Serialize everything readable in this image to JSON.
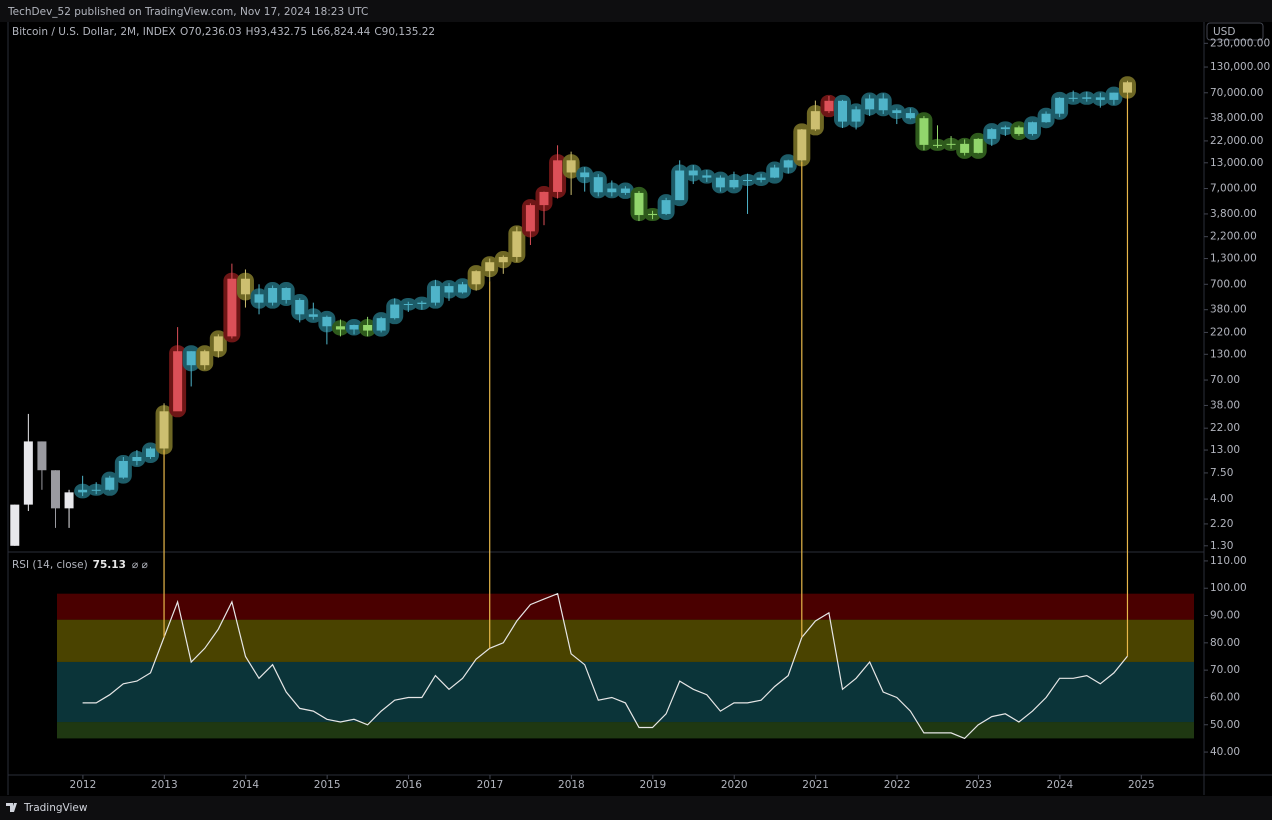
{
  "header": {
    "publisher": "TechDev_52 published on TradingView.com, Nov 17, 2024 18:23 UTC",
    "symbol": "Bitcoin / U.S. Dollar, 2M, INDEX",
    "ohlc_labels": [
      "O70,236.03",
      "H93,432.75",
      "L66,824.44",
      "C90,135.22"
    ],
    "currency": "USD",
    "footer": "TradingView"
  },
  "chart_data": {
    "type": "candlestick",
    "log": true,
    "xlim": [
      2011.08,
      2025.77
    ],
    "xticks": [
      2012,
      2013,
      2014,
      2015,
      2016,
      2017,
      2018,
      2019,
      2020,
      2021,
      2022,
      2023,
      2024,
      2025
    ],
    "ylim": [
      1.12,
      384000
    ],
    "yticks": [
      {
        "value": 230000,
        "label": "230,000.00"
      },
      {
        "value": 130000,
        "label": "130,000.00"
      },
      {
        "value": 70000,
        "label": "70,000.00"
      },
      {
        "value": 38000,
        "label": "38,000.00"
      },
      {
        "value": 22000,
        "label": "22,000.00"
      },
      {
        "value": 13000,
        "label": "13,000.00"
      },
      {
        "value": 7000,
        "label": "7,000.00"
      },
      {
        "value": 3800,
        "label": "3,800.00"
      },
      {
        "value": 2200,
        "label": "2,200.00"
      },
      {
        "value": 1300,
        "label": "1,300.00"
      },
      {
        "value": 700,
        "label": "700.00"
      },
      {
        "value": 380,
        "label": "380.00"
      },
      {
        "value": 220,
        "label": "220.00"
      },
      {
        "value": 130,
        "label": "130.00"
      },
      {
        "value": 70,
        "label": "70.00"
      },
      {
        "value": 38,
        "label": "38.00"
      },
      {
        "value": 22,
        "label": "22.00"
      },
      {
        "value": 13,
        "label": "13.00"
      },
      {
        "value": 7.5,
        "label": "7.50"
      },
      {
        "value": 4,
        "label": "4.00"
      },
      {
        "value": 2.2,
        "label": "2.20"
      },
      {
        "value": 1.3,
        "label": "1.30"
      }
    ],
    "candles": {
      "open": [
        1.3,
        3.5,
        16,
        8,
        3.2,
        4.7,
        5,
        5,
        6.7,
        10,
        11,
        13.5,
        33,
        140,
        100,
        140,
        200,
        800,
        550,
        450,
        640,
        480,
        340,
        320,
        255,
        236,
        263,
        230,
        310,
        430,
        436,
        450,
        670,
        575,
        700,
        960,
        1190,
        1350,
        2500,
        4700,
        6450,
        13800,
        10300,
        9200,
        6400,
        7000,
        6300,
        3700,
        3800,
        5300,
        10800,
        9600,
        9100,
        7200,
        8600,
        8600,
        9100,
        11600,
        13800,
        29000,
        45000,
        57700,
        35000,
        47000,
        61000,
        46000,
        43000,
        38000,
        20000,
        20000,
        20500,
        16500,
        23100,
        29200,
        30500,
        26000,
        34500,
        42300,
        62000,
        60600,
        62700,
        59000,
        70236.03
      ],
      "high": [
        3.5,
        31,
        16,
        8,
        5,
        7,
        6,
        7,
        11,
        13,
        14,
        40,
        250,
        140,
        145,
        210,
        1150,
        1000,
        700,
        680,
        650,
        500,
        450,
        330,
        300,
        265,
        320,
        320,
        500,
        460,
        470,
        780,
        720,
        740,
        980,
        1300,
        1400,
        2800,
        4900,
        6500,
        19800,
        17000,
        11700,
        9900,
        8500,
        7400,
        6600,
        4100,
        5600,
        13800,
        12300,
        10950,
        9600,
        10500,
        10000,
        10000,
        12400,
        14000,
        29300,
        58000,
        64800,
        59000,
        50500,
        67000,
        69000,
        48000,
        48200,
        40000,
        32000,
        24700,
        22800,
        23500,
        30000,
        31800,
        31800,
        35000,
        44700,
        63000,
        73800,
        72000,
        70000,
        70300,
        93432.75
      ],
      "low": [
        1.3,
        3,
        5,
        2,
        2,
        4.3,
        4.5,
        4.9,
        6.5,
        9,
        10.5,
        13,
        50,
        60,
        90,
        120,
        190,
        400,
        340,
        420,
        440,
        280,
        300,
        165,
        200,
        210,
        200,
        220,
        300,
        360,
        380,
        420,
        470,
        560,
        600,
        750,
        900,
        1200,
        1800,
        2900,
        5500,
        6000,
        6500,
        5800,
        5800,
        6000,
        3200,
        3350,
        3700,
        5300,
        7800,
        8200,
        6500,
        6900,
        3800,
        8100,
        9000,
        10000,
        13300,
        28000,
        43000,
        30000,
        29000,
        40000,
        42000,
        33000,
        37000,
        17600,
        18600,
        18200,
        15500,
        16300,
        19500,
        24800,
        24900,
        25000,
        34000,
        39000,
        56600,
        56500,
        49000,
        52500,
        66824.44
      ],
      "close": [
        3.5,
        16,
        8,
        3.2,
        4.7,
        5,
        5,
        6.7,
        10,
        11,
        13.5,
        33,
        140,
        100,
        140,
        200,
        800,
        550,
        450,
        640,
        480,
        340,
        320,
        255,
        236,
        263,
        230,
        310,
        430,
        436,
        450,
        670,
        575,
        700,
        960,
        1190,
        1350,
        2500,
        4700,
        6450,
        13800,
        10300,
        9200,
        6400,
        7000,
        6300,
        3700,
        3800,
        5300,
        10800,
        9600,
        9100,
        7200,
        8600,
        8600,
        9100,
        11600,
        13800,
        29000,
        45000,
        57700,
        35000,
        47000,
        61000,
        46000,
        43000,
        38000,
        20000,
        20000,
        20500,
        16500,
        23100,
        29200,
        30500,
        26000,
        34500,
        42300,
        62000,
        60600,
        62700,
        59000,
        70236.03,
        90135.22
      ]
    },
    "highlight_candles": [
      11,
      35,
      58,
      82
    ],
    "highlight_color": "#e8b84a",
    "rsi": {
      "title": "RSI (14, close)",
      "value_label": "75.13",
      "color": "#e6e6e6",
      "ylim": [
        31.6,
        112.9
      ],
      "yticks": [
        {
          "value": 110,
          "label": "110.00"
        },
        {
          "value": 100,
          "label": "100.00"
        },
        {
          "value": 90,
          "label": "90.00"
        },
        {
          "value": 80,
          "label": "80.00"
        },
        {
          "value": 70,
          "label": "70.00"
        },
        {
          "value": 60,
          "label": "60.00"
        },
        {
          "value": 50,
          "label": "50.00"
        },
        {
          "value": 40,
          "label": "40.00"
        }
      ],
      "bands": [
        {
          "range": [
            45,
            51
          ],
          "color": "#1f3812",
          "halo": "#2e5a1c",
          "body": "#92d66c"
        },
        {
          "range": [
            51,
            73
          ],
          "color": "#0b3439",
          "halo": "#1d5c68",
          "body": "#4fb4c9"
        },
        {
          "range": [
            73,
            88.5
          ],
          "color": "#4a4300",
          "halo": "#6e6724",
          "body": "#cdbf70"
        },
        {
          "range": [
            88.5,
            98
          ],
          "color": "#4a0000",
          "halo": "#6e1616",
          "body": "#dc5058"
        }
      ],
      "values": [
        null,
        null,
        null,
        null,
        null,
        58,
        58,
        61,
        65,
        66,
        69,
        82,
        95,
        73,
        78,
        85,
        95,
        75,
        67,
        72,
        62,
        56,
        55,
        52,
        51,
        52,
        50,
        55,
        59,
        60,
        60,
        68,
        63,
        67,
        74,
        78,
        80,
        88,
        94,
        96,
        98,
        76,
        72,
        59,
        60,
        58,
        49,
        49,
        54,
        66,
        63,
        61,
        55,
        58,
        58,
        59,
        64,
        68,
        82,
        88,
        91,
        63,
        67,
        73,
        62,
        60,
        55,
        47,
        47,
        47,
        45,
        50,
        53,
        54,
        51,
        55,
        60,
        67,
        67,
        68,
        65,
        69,
        75.13
      ]
    }
  }
}
